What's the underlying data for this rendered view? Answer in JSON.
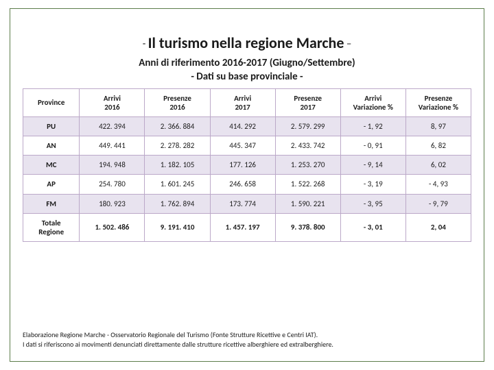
{
  "title": {
    "dash_left": "- ",
    "text": "Il turismo nella regione Marche",
    "dash_right": " –"
  },
  "subtitle_line1": "Anni di riferimento 2016-2017 (Giugno/Settembre)",
  "subtitle_line2": "- Dati su base provinciale -",
  "columns": [
    "Province",
    "Arrivi\n2016",
    "Presenze\n2016",
    "Arrivi\n2017",
    "Presenze\n2017",
    "Arrivi\nVariazione %",
    "Presenze\nVariazione %"
  ],
  "rows": [
    {
      "province": "PU",
      "arr16": "422. 394",
      "pre16": "2. 366. 884",
      "arr17": "414. 292",
      "pre17": "2. 579. 299",
      "darr": "- 1, 92",
      "dpre": "8, 97"
    },
    {
      "province": "AN",
      "arr16": "449. 441",
      "pre16": "2. 278. 282",
      "arr17": "445. 347",
      "pre17": "2. 433. 742",
      "darr": "- 0, 91",
      "dpre": "6, 82"
    },
    {
      "province": "MC",
      "arr16": "194. 948",
      "pre16": "1. 182. 105",
      "arr17": "177. 126",
      "pre17": "1. 253. 270",
      "darr": "- 9, 14",
      "dpre": "6, 02"
    },
    {
      "province": "AP",
      "arr16": "254. 780",
      "pre16": "1. 601. 245",
      "arr17": "246. 658",
      "pre17": "1. 522. 268",
      "darr": "- 3, 19",
      "dpre": "- 4, 93"
    },
    {
      "province": "FM",
      "arr16": "180. 923",
      "pre16": "1. 762. 894",
      "arr17": "173. 774",
      "pre17": "1. 590. 221",
      "darr": "- 3, 95",
      "dpre": "- 9, 79"
    }
  ],
  "total_row": {
    "province": "Totale\nRegione",
    "arr16": "1. 502. 486",
    "pre16": "9. 191. 410",
    "arr17": "1. 457. 197",
    "pre17": "9. 378. 800",
    "darr": "- 3, 01",
    "dpre": "2, 04"
  },
  "footnote_line1": "Elaborazione Regione Marche - Osservatorio Regionale del Turismo (Fonte Strutture Ricettive e Centri IAT).",
  "footnote_line2": "I dati si riferiscono ai movimenti denunciati direttamente dalle strutture ricettive alberghiere ed extralberghiere."
}
